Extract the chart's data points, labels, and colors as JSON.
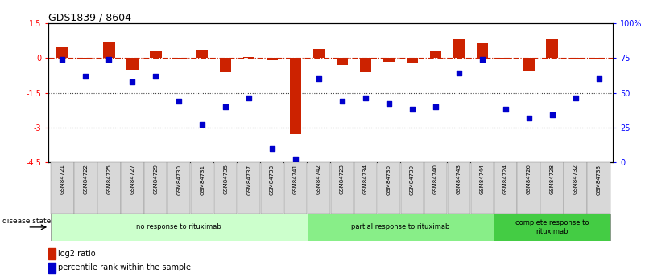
{
  "title": "GDS1839 / 8604",
  "samples": [
    "GSM84721",
    "GSM84722",
    "GSM84725",
    "GSM84727",
    "GSM84729",
    "GSM84730",
    "GSM84731",
    "GSM84735",
    "GSM84737",
    "GSM84738",
    "GSM84741",
    "GSM84742",
    "GSM84723",
    "GSM84734",
    "GSM84736",
    "GSM84739",
    "GSM84740",
    "GSM84743",
    "GSM84744",
    "GSM84724",
    "GSM84726",
    "GSM84728",
    "GSM84732",
    "GSM84733"
  ],
  "log2_ratio": [
    0.5,
    -0.05,
    0.7,
    -0.5,
    0.3,
    -0.05,
    0.35,
    -0.6,
    0.05,
    -0.1,
    -3.3,
    0.4,
    -0.3,
    -0.6,
    -0.15,
    -0.2,
    0.3,
    0.8,
    0.65,
    -0.05,
    -0.55,
    0.85,
    -0.05,
    -0.05
  ],
  "percentile": [
    74,
    62,
    74,
    58,
    62,
    44,
    27,
    40,
    46,
    10,
    2,
    60,
    44,
    46,
    42,
    38,
    40,
    64,
    74,
    38,
    32,
    34,
    46,
    60
  ],
  "groups": [
    {
      "label": "no response to rituximab",
      "start": 0,
      "end": 11,
      "color": "#ccffcc"
    },
    {
      "label": "partial response to rituximab",
      "start": 11,
      "end": 19,
      "color": "#88ee88"
    },
    {
      "label": "complete response to\nrituximab",
      "start": 19,
      "end": 24,
      "color": "#44cc44"
    }
  ],
  "ylim_left": [
    -4.5,
    1.5
  ],
  "ylim_right": [
    0,
    100
  ],
  "yticks_left": [
    1.5,
    0.0,
    -1.5,
    -3.0,
    -4.5
  ],
  "yticks_right": [
    100,
    75,
    50,
    25,
    0
  ],
  "yticklabels_left": [
    "1.5",
    "0",
    "-1.5",
    "-3",
    "-4.5"
  ],
  "yticklabels_right": [
    "100%",
    "75",
    "50",
    "25",
    "0"
  ],
  "bar_color_red": "#cc2200",
  "bar_color_blue": "#0000cc",
  "hline_color": "#cc2200",
  "dotted_line_color": "#444444"
}
